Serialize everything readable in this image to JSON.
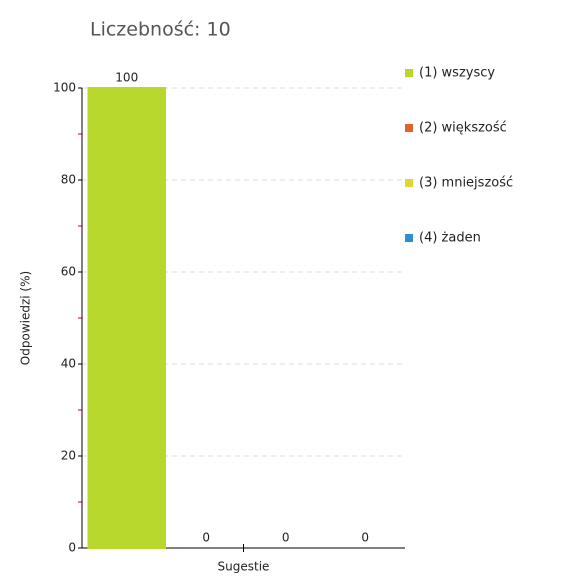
{
  "chart_data": {
    "type": "bar",
    "title": "Liczebność: 10",
    "ylabel": "Odpowiedzi (%)",
    "categories": [
      "Sugestie"
    ],
    "series": [
      {
        "name": "(1) wszyscy",
        "color": "#b8d82e",
        "values": [
          100
        ]
      },
      {
        "name": "(2) większość",
        "color": "#e0622f",
        "values": [
          0
        ]
      },
      {
        "name": "(3) mniejszość",
        "color": "#dcd92c",
        "values": [
          0
        ]
      },
      {
        "name": "(4) żaden",
        "color": "#2b8fd6",
        "values": [
          0
        ]
      }
    ],
    "ylim": [
      0,
      100
    ],
    "yticks": [
      0,
      20,
      40,
      60,
      80,
      100
    ],
    "yminorticks": [
      10,
      30,
      50,
      70,
      90
    ],
    "grid": true,
    "legend": "right"
  }
}
